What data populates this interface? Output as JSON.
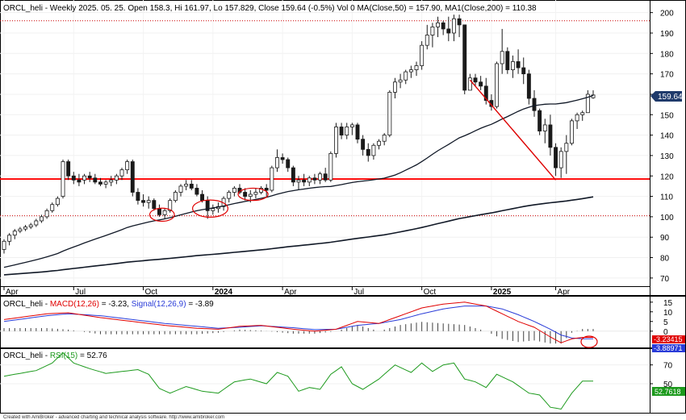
{
  "chart_data": [
    {
      "type": "candlestick",
      "header": {
        "symbol": "ORCL_heli",
        "info": " - Weekly 2025. 05. 25. Open 158.3, Hi 161.97, Lo 157.829, Close 159.64 (-0.5%) Vol 0 ",
        "ma50": "MA(Close,50) = 157.90, ",
        "ma200": "MA1(Close,200) = 110.38"
      },
      "y_ticks": [
        200,
        190,
        180,
        170,
        160,
        150,
        140,
        130,
        120,
        110,
        100,
        90,
        80,
        70
      ],
      "ylim": [
        66,
        205
      ],
      "x_labels": [
        {
          "i": 0,
          "label": "Apr"
        },
        {
          "i": 13,
          "label": "Jul"
        },
        {
          "i": 26,
          "label": "Oct"
        },
        {
          "i": 39,
          "label": "2024"
        },
        {
          "i": 52,
          "label": "Apr"
        },
        {
          "i": 65,
          "label": "Jul"
        },
        {
          "i": 78,
          "label": "Oct"
        },
        {
          "i": 91,
          "label": "2025"
        },
        {
          "i": 103,
          "label": "Apr"
        }
      ],
      "last_price_label": "159.64",
      "hlines": [
        {
          "value": 196,
          "style": "dotted",
          "color": "#cc0000"
        },
        {
          "value": 118.5,
          "style": "solid",
          "color": "#ff0000"
        },
        {
          "value": 100.5,
          "style": "dotted",
          "color": "#cc0000"
        }
      ],
      "trendline": {
        "from": {
          "i": 87,
          "value": 167
        },
        "to": {
          "i": 103,
          "value": 118
        },
        "color": "#dd0000"
      },
      "ellipses": [
        {
          "i": 29.5,
          "value": 101,
          "rx_bars": 2.3,
          "ry_units": 3.2
        },
        {
          "i": 38.5,
          "value": 104,
          "rx_bars": 3.3,
          "ry_units": 4.2
        },
        {
          "i": 46.5,
          "value": 111,
          "rx_bars": 2.8,
          "ry_units": 3.0
        }
      ],
      "series_ohlc": [
        [
          84,
          89,
          82,
          88
        ],
        [
          88,
          92,
          86,
          91
        ],
        [
          91,
          94,
          89,
          93
        ],
        [
          93,
          95,
          92,
          94
        ],
        [
          94,
          96,
          93,
          95
        ],
        [
          95,
          97,
          94,
          96
        ],
        [
          96,
          99,
          95,
          98
        ],
        [
          98,
          101,
          97,
          100
        ],
        [
          100,
          104,
          99,
          103
        ],
        [
          103,
          107,
          102,
          106
        ],
        [
          106,
          110,
          105,
          109
        ],
        [
          110,
          128,
          109,
          127
        ],
        [
          127,
          128,
          118,
          120
        ],
        [
          120,
          122,
          116,
          118
        ],
        [
          118,
          121,
          115,
          117
        ],
        [
          118,
          121,
          116,
          120
        ],
        [
          120,
          122,
          117,
          119
        ],
        [
          119,
          121,
          116,
          117
        ],
        [
          117,
          119,
          115,
          116
        ],
        [
          116,
          118,
          114,
          117
        ],
        [
          117,
          120,
          115,
          118
        ],
        [
          118,
          121,
          116,
          120
        ],
        [
          120,
          124,
          118,
          123
        ],
        [
          123,
          128,
          121,
          127
        ],
        [
          127,
          128,
          110,
          112
        ],
        [
          112,
          114,
          106,
          108
        ],
        [
          108,
          111,
          105,
          107
        ],
        [
          107,
          110,
          104,
          108
        ],
        [
          108,
          109,
          103,
          104
        ],
        [
          104,
          106,
          100,
          101
        ],
        [
          101,
          104,
          99,
          103
        ],
        [
          103,
          109,
          102,
          108
        ],
        [
          108,
          113,
          107,
          112
        ],
        [
          112,
          116,
          110,
          115
        ],
        [
          115,
          118,
          113,
          116
        ],
        [
          116,
          118,
          113,
          114
        ],
        [
          114,
          116,
          110,
          111
        ],
        [
          111,
          113,
          107,
          108
        ],
        [
          108,
          110,
          99,
          103
        ],
        [
          103,
          106,
          101,
          104
        ],
        [
          104,
          107,
          102,
          105
        ],
        [
          105,
          110,
          103,
          109
        ],
        [
          109,
          113,
          107,
          112
        ],
        [
          112,
          115,
          110,
          114
        ],
        [
          114,
          116,
          111,
          112
        ],
        [
          112,
          114,
          108,
          110
        ],
        [
          110,
          113,
          107,
          111
        ],
        [
          111,
          114,
          109,
          112
        ],
        [
          112,
          115,
          111,
          114
        ],
        [
          114,
          116,
          110,
          113
        ],
        [
          113,
          125,
          112,
          124
        ],
        [
          124,
          133,
          122,
          129
        ],
        [
          129,
          131,
          126,
          128
        ],
        [
          128,
          129,
          122,
          124
        ],
        [
          124,
          125,
          115,
          117
        ],
        [
          117,
          120,
          113,
          118
        ],
        [
          118,
          121,
          115,
          117
        ],
        [
          117,
          120,
          115,
          119
        ],
        [
          119,
          121,
          116,
          118
        ],
        [
          118,
          122,
          116,
          121
        ],
        [
          121,
          124,
          117,
          118
        ],
        [
          118,
          132,
          117,
          131
        ],
        [
          131,
          146,
          129,
          144
        ],
        [
          144,
          146,
          138,
          140
        ],
        [
          140,
          146,
          138,
          144
        ],
        [
          144,
          146,
          140,
          145
        ],
        [
          145,
          146,
          136,
          138
        ],
        [
          138,
          140,
          130,
          133
        ],
        [
          133,
          136,
          127,
          130
        ],
        [
          130,
          136,
          128,
          135
        ],
        [
          135,
          138,
          133,
          137
        ],
        [
          137,
          141,
          135,
          140
        ],
        [
          140,
          162,
          139,
          161
        ],
        [
          161,
          168,
          158,
          166
        ],
        [
          166,
          170,
          163,
          167
        ],
        [
          167,
          172,
          165,
          171
        ],
        [
          171,
          174,
          168,
          172
        ],
        [
          172,
          176,
          169,
          174
        ],
        [
          174,
          186,
          172,
          184
        ],
        [
          184,
          194,
          182,
          189
        ],
        [
          189,
          195,
          183,
          193
        ],
        [
          193,
          198,
          188,
          195
        ],
        [
          195,
          196,
          189,
          192
        ],
        [
          192,
          198,
          186,
          190
        ],
        [
          190,
          199,
          186,
          197
        ],
        [
          197,
          199,
          188,
          194
        ],
        [
          194,
          194,
          160,
          162
        ],
        [
          162,
          170,
          162,
          168
        ],
        [
          168,
          170,
          164,
          166
        ],
        [
          166,
          169,
          162,
          164
        ],
        [
          164,
          168,
          155,
          157
        ],
        [
          157,
          160,
          152,
          154
        ],
        [
          154,
          176,
          153,
          175
        ],
        [
          175,
          192,
          170,
          181
        ],
        [
          181,
          183,
          170,
          172
        ],
        [
          172,
          179,
          168,
          176
        ],
        [
          176,
          182,
          170,
          173
        ],
        [
          173,
          178,
          165,
          170
        ],
        [
          170,
          172,
          155,
          158
        ],
        [
          158,
          162,
          149,
          152
        ],
        [
          152,
          153,
          140,
          142
        ],
        [
          142,
          148,
          136,
          145
        ],
        [
          145,
          150,
          130,
          134
        ],
        [
          134,
          136,
          120,
          124
        ],
        [
          124,
          134,
          119,
          132
        ],
        [
          132,
          140,
          121,
          136
        ],
        [
          136,
          148,
          135,
          147
        ],
        [
          147,
          151,
          143,
          150
        ],
        [
          150,
          152,
          147,
          151
        ],
        [
          151,
          162,
          152,
          160
        ],
        [
          158.3,
          161.97,
          157.829,
          159.64
        ]
      ]
    },
    {
      "type": "line",
      "header": {
        "symbol": "ORCL_heli",
        "name": "MACD(12,26)",
        "value": "= -3.23, ",
        "signal_name": "Signal(12,26,9)",
        "signal_value": "= -3.89"
      },
      "y_ticks": [
        15,
        10,
        5,
        0
      ],
      "ylim": [
        -8,
        17
      ],
      "macd_label": "-3.23415",
      "signal_label": "-3.88971",
      "colors": {
        "macd": "#e00000",
        "signal": "#2a3cd8",
        "hist": "#404040"
      },
      "macd_keypoints": [
        [
          0,
          6
        ],
        [
          8,
          9
        ],
        [
          12,
          9.5
        ],
        [
          18,
          7
        ],
        [
          24,
          5
        ],
        [
          30,
          3
        ],
        [
          36,
          1.5
        ],
        [
          40,
          1
        ],
        [
          44,
          2.5
        ],
        [
          48,
          3
        ],
        [
          54,
          1
        ],
        [
          58,
          0
        ],
        [
          62,
          1
        ],
        [
          66,
          5
        ],
        [
          70,
          4
        ],
        [
          74,
          8
        ],
        [
          78,
          12
        ],
        [
          82,
          14
        ],
        [
          86,
          15
        ],
        [
          90,
          13
        ],
        [
          93,
          9
        ],
        [
          96,
          5
        ],
        [
          99,
          2
        ],
        [
          102,
          -3
        ],
        [
          104,
          -6
        ],
        [
          106,
          -4
        ],
        [
          108,
          -3.2
        ]
      ],
      "signal_keypoints": [
        [
          0,
          5
        ],
        [
          8,
          8
        ],
        [
          12,
          9
        ],
        [
          18,
          8
        ],
        [
          24,
          6
        ],
        [
          30,
          4
        ],
        [
          36,
          2.5
        ],
        [
          40,
          1.5
        ],
        [
          44,
          2
        ],
        [
          48,
          2.8
        ],
        [
          54,
          1.8
        ],
        [
          58,
          0.8
        ],
        [
          62,
          1
        ],
        [
          66,
          3
        ],
        [
          70,
          4
        ],
        [
          74,
          6
        ],
        [
          78,
          9
        ],
        [
          82,
          11.5
        ],
        [
          86,
          13
        ],
        [
          90,
          13
        ],
        [
          93,
          11.5
        ],
        [
          96,
          8.5
        ],
        [
          99,
          5
        ],
        [
          102,
          1
        ],
        [
          104,
          -2
        ],
        [
          106,
          -3.5
        ],
        [
          108,
          -3.9
        ]
      ]
    },
    {
      "type": "line",
      "header": {
        "symbol": "ORCL_heli",
        "name": "RSI(15)",
        "value": "= 52.76"
      },
      "y_ticks": [
        70,
        50
      ],
      "ylim": [
        20,
        86
      ],
      "rsi_label": "52.7618",
      "color": "#1d9a1d",
      "keypoints": [
        [
          0,
          58
        ],
        [
          3,
          61
        ],
        [
          6,
          64
        ],
        [
          9,
          72
        ],
        [
          11,
          83
        ],
        [
          13,
          72
        ],
        [
          16,
          66
        ],
        [
          19,
          61
        ],
        [
          22,
          63
        ],
        [
          25,
          65
        ],
        [
          27,
          60
        ],
        [
          29,
          45
        ],
        [
          31,
          40
        ],
        [
          34,
          47
        ],
        [
          37,
          42
        ],
        [
          40,
          40
        ],
        [
          43,
          52
        ],
        [
          46,
          55
        ],
        [
          49,
          50
        ],
        [
          51,
          62
        ],
        [
          53,
          58
        ],
        [
          55,
          42
        ],
        [
          57,
          46
        ],
        [
          59,
          44
        ],
        [
          61,
          60
        ],
        [
          63,
          68
        ],
        [
          65,
          50
        ],
        [
          67,
          44
        ],
        [
          70,
          55
        ],
        [
          73,
          70
        ],
        [
          76,
          62
        ],
        [
          78,
          72
        ],
        [
          80,
          63
        ],
        [
          82,
          70
        ],
        [
          84,
          72
        ],
        [
          86,
          55
        ],
        [
          88,
          52
        ],
        [
          90,
          46
        ],
        [
          92,
          60
        ],
        [
          95,
          52
        ],
        [
          98,
          40
        ],
        [
          100,
          38
        ],
        [
          102,
          25
        ],
        [
          104,
          23
        ],
        [
          106,
          40
        ],
        [
          108,
          52.76
        ]
      ]
    }
  ],
  "footer": "Created with AmiBroker - advanced charting and technical analysis software. http://www.amibroker.com"
}
